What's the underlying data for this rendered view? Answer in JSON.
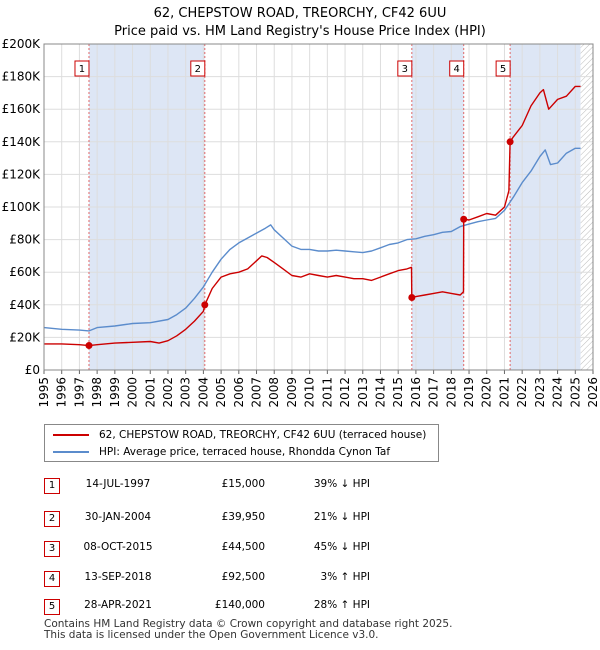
{
  "chart_data": {
    "type": "line",
    "title": "62, CHEPSTOW ROAD, TREORCHY, CF42 6UU",
    "subtitle": "Price paid vs. HM Land Registry's House Price Index (HPI)",
    "xlim": [
      1995,
      2026
    ],
    "ylim": [
      0,
      200000
    ],
    "x_ticks": [
      1995,
      1996,
      1997,
      1998,
      1999,
      2000,
      2001,
      2002,
      2003,
      2004,
      2005,
      2006,
      2007,
      2008,
      2009,
      2010,
      2011,
      2012,
      2013,
      2014,
      2015,
      2016,
      2017,
      2018,
      2019,
      2020,
      2021,
      2022,
      2023,
      2024,
      2025,
      2026
    ],
    "y_ticks": [
      0,
      20000,
      40000,
      60000,
      80000,
      100000,
      120000,
      140000,
      160000,
      180000,
      200000
    ],
    "y_tick_labels": [
      "£0",
      "£20K",
      "£40K",
      "£60K",
      "£80K",
      "£100K",
      "£120K",
      "£140K",
      "£160K",
      "£180K",
      "£200K"
    ],
    "shaded_spans": [
      [
        1997.54,
        2004.08
      ],
      [
        2015.77,
        2018.7
      ],
      [
        2021.32,
        2025.3
      ]
    ],
    "hatch_from": 2025.3,
    "series": [
      {
        "name": "62, CHEPSTOW ROAD, TREORCHY, CF42 6UU (terraced house)",
        "color": "#cc0000",
        "x": [
          1995.0,
          1996.0,
          1997.0,
          1997.54,
          1998.0,
          1999.0,
          2000.0,
          2001.0,
          2001.5,
          2002.0,
          2002.5,
          2003.0,
          2003.5,
          2004.0,
          2004.08,
          2004.5,
          2005.0,
          2005.5,
          2006.0,
          2006.5,
          2007.0,
          2007.3,
          2007.6,
          2008.0,
          2008.5,
          2009.0,
          2009.5,
          2010.0,
          2010.5,
          2011.0,
          2011.5,
          2012.0,
          2012.5,
          2013.0,
          2013.5,
          2014.0,
          2014.5,
          2015.0,
          2015.5,
          2015.75,
          2015.77,
          2016.0,
          2016.5,
          2017.0,
          2017.5,
          2018.0,
          2018.5,
          2018.69,
          2018.7,
          2019.0,
          2019.5,
          2020.0,
          2020.5,
          2021.0,
          2021.25,
          2021.32,
          2021.5,
          2022.0,
          2022.5,
          2023.0,
          2023.2,
          2023.5,
          2024.0,
          2024.5,
          2025.0,
          2025.3
        ],
        "values": [
          16000,
          16000,
          15500,
          15000,
          15500,
          16500,
          17000,
          17500,
          16500,
          18000,
          21000,
          25000,
          30000,
          36000,
          39950,
          50000,
          57000,
          59000,
          60000,
          62000,
          67000,
          70000,
          69000,
          66000,
          62000,
          58000,
          57000,
          59000,
          58000,
          57000,
          58000,
          57000,
          56000,
          56000,
          55000,
          57000,
          59000,
          61000,
          62000,
          63000,
          44500,
          45000,
          46000,
          47000,
          48000,
          47000,
          46000,
          48000,
          92500,
          92000,
          94000,
          96000,
          95000,
          100000,
          110000,
          140000,
          143000,
          150000,
          162000,
          170000,
          172000,
          160000,
          166000,
          168000,
          174000,
          174000
        ]
      },
      {
        "name": "HPI: Average price, terraced house, Rhondda Cynon Taf",
        "color": "#5b8ccc",
        "x": [
          1995.0,
          1996.0,
          1997.0,
          1997.54,
          1998.0,
          1999.0,
          2000.0,
          2001.0,
          2002.0,
          2002.5,
          2003.0,
          2003.5,
          2004.0,
          2004.5,
          2005.0,
          2005.5,
          2006.0,
          2006.5,
          2007.0,
          2007.5,
          2007.8,
          2008.0,
          2008.5,
          2009.0,
          2009.5,
          2010.0,
          2010.5,
          2011.0,
          2011.5,
          2012.0,
          2012.5,
          2013.0,
          2013.5,
          2014.0,
          2014.5,
          2015.0,
          2015.5,
          2016.0,
          2016.5,
          2017.0,
          2017.5,
          2018.0,
          2018.5,
          2019.0,
          2019.5,
          2020.0,
          2020.5,
          2021.0,
          2021.5,
          2022.0,
          2022.5,
          2023.0,
          2023.3,
          2023.6,
          2024.0,
          2024.5,
          2025.0,
          2025.3
        ],
        "values": [
          26000,
          25000,
          24500,
          24000,
          26000,
          27000,
          28500,
          29000,
          31000,
          34000,
          38000,
          44000,
          51000,
          60000,
          68000,
          74000,
          78000,
          81000,
          84000,
          87000,
          89000,
          86000,
          81000,
          76000,
          74000,
          74000,
          73000,
          73000,
          73500,
          73000,
          72500,
          72000,
          73000,
          75000,
          77000,
          78000,
          80000,
          80500,
          82000,
          83000,
          84500,
          85000,
          88000,
          89500,
          91000,
          92000,
          93000,
          98000,
          106000,
          115000,
          122000,
          131000,
          135000,
          126000,
          127000,
          133000,
          136000,
          136000
        ]
      }
    ],
    "sales": [
      {
        "num": "1",
        "date": "14-JUL-1997",
        "year": 1997.54,
        "price_value": 15000,
        "price": "£15,000",
        "hpi": "39% ↓ HPI"
      },
      {
        "num": "2",
        "date": "30-JAN-2004",
        "year": 2004.08,
        "price_value": 39950,
        "price": "£39,950",
        "hpi": "21% ↓ HPI"
      },
      {
        "num": "3",
        "date": "08-OCT-2015",
        "year": 2015.77,
        "price_value": 44500,
        "price": "£44,500",
        "hpi": "45% ↓ HPI"
      },
      {
        "num": "4",
        "date": "13-SEP-2018",
        "year": 2018.7,
        "price_value": 92500,
        "price": "£92,500",
        "hpi": "3% ↑ HPI"
      },
      {
        "num": "5",
        "date": "28-APR-2021",
        "year": 2021.32,
        "price_value": 140000,
        "price": "£140,000",
        "hpi": "28% ↑ HPI"
      }
    ]
  },
  "legend": {
    "property": "62, CHEPSTOW ROAD, TREORCHY, CF42 6UU (terraced house)",
    "hpi": "HPI: Average price, terraced house, Rhondda Cynon Taf"
  },
  "footer": {
    "line1": "Contains HM Land Registry data © Crown copyright and database right 2025.",
    "line2": "This data is licensed under the Open Government Licence v3.0."
  }
}
